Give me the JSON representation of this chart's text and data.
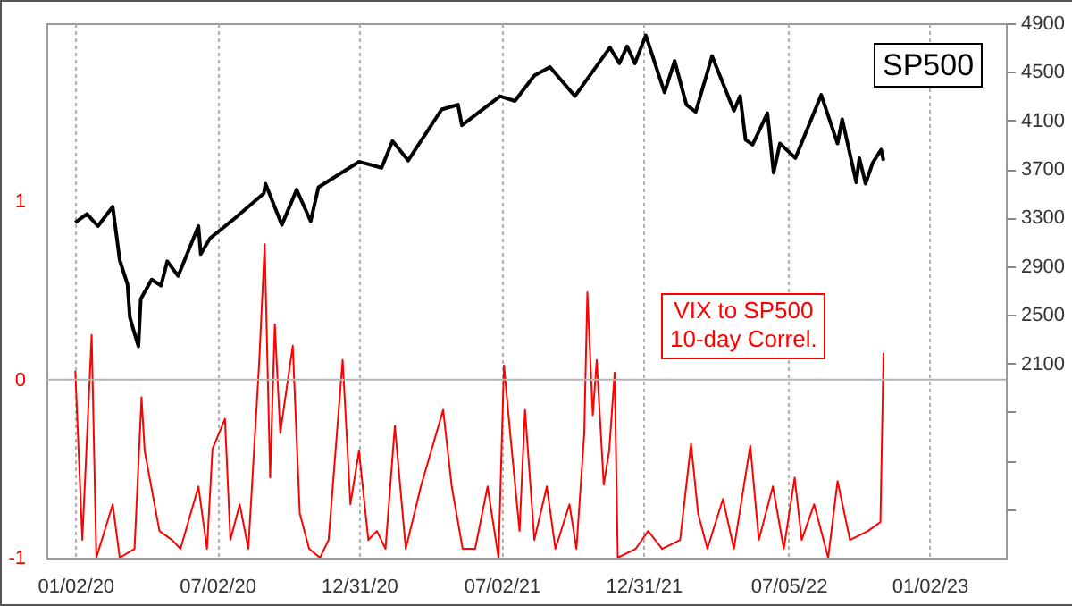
{
  "chart_data": {
    "type": "line",
    "grid": "x",
    "xlim": [
      "2019-11-26",
      "2023-04-10"
    ],
    "xticks": [
      {
        "value": "2020-01-02",
        "label": "01/02/20"
      },
      {
        "value": "2020-07-02",
        "label": "07/02/20"
      },
      {
        "value": "2020-12-31",
        "label": "12/31/20"
      },
      {
        "value": "2021-07-02",
        "label": "07/02/21"
      },
      {
        "value": "2021-12-31",
        "label": "12/31/21"
      },
      {
        "value": "2022-07-05",
        "label": "07/05/22"
      },
      {
        "value": "2023-01-02",
        "label": "01/02/23"
      }
    ],
    "ylim": [
      -1,
      2
    ],
    "yticks": [
      -1,
      0,
      1
    ],
    "y2lim": [
      500,
      4900
    ],
    "y2ticks": [
      {
        "value": 900,
        "label": null
      },
      {
        "value": 1300,
        "label": null
      },
      {
        "value": 1700,
        "label": null
      },
      2100,
      2500,
      2900,
      3300,
      3700,
      4100,
      4500,
      4900
    ],
    "ref_lines": [
      {
        "axis": "y",
        "value": 0,
        "color": "#b4b4b4"
      }
    ],
    "series": [
      {
        "name": "VIX to SP500\n10-day Correl.",
        "color": "#ff0000",
        "x": [
          "2020-01-02",
          "2020-01-11",
          "2020-01-23",
          "2020-01-29",
          "2020-02-19",
          "2020-02-28",
          "2020-03-18",
          "2020-03-27",
          "2020-03-31",
          "2020-04-19",
          "2020-05-05",
          "2020-05-16",
          "2020-06-08",
          "2020-06-19",
          "2020-06-26",
          "2020-07-12",
          "2020-07-19",
          "2020-07-31",
          "2020-08-11",
          "2020-08-25",
          "2020-09-01",
          "2020-09-08",
          "2020-09-14",
          "2020-09-21",
          "2020-10-07",
          "2020-10-16",
          "2020-10-28",
          "2020-11-11",
          "2020-11-22",
          "2020-12-10",
          "2020-12-20",
          "2020-12-31",
          "2021-01-12",
          "2021-01-23",
          "2021-02-03",
          "2021-02-15",
          "2021-03-01",
          "2021-03-21",
          "2021-04-18",
          "2021-04-29",
          "2021-05-13",
          "2021-05-29",
          "2021-06-14",
          "2021-06-28",
          "2021-07-05",
          "2021-07-14",
          "2021-07-25",
          "2021-08-01",
          "2021-08-13",
          "2021-08-29",
          "2021-09-09",
          "2021-09-27",
          "2021-10-06",
          "2021-10-16",
          "2021-10-20",
          "2021-10-27",
          "2021-11-01",
          "2021-11-10",
          "2021-11-17",
          "2021-11-24",
          "2021-11-28",
          "2021-12-21",
          "2022-01-06",
          "2022-01-24",
          "2022-02-16",
          "2022-03-02",
          "2022-03-11",
          "2022-03-23",
          "2022-04-12",
          "2022-04-26",
          "2022-05-17",
          "2022-05-28",
          "2022-06-15",
          "2022-06-29",
          "2022-07-13",
          "2022-07-22",
          "2022-08-07",
          "2022-08-25",
          "2022-09-06",
          "2022-09-22",
          "2022-10-15",
          "2022-10-31",
          "2022-11-04"
        ],
        "values": [
          0.05,
          -0.9,
          0.25,
          -1,
          -0.7,
          -1,
          -0.95,
          -0.1,
          -0.4,
          -0.85,
          -0.9,
          -0.95,
          -0.6,
          -0.95,
          -0.39,
          -0.22,
          -0.9,
          -0.7,
          -0.95,
          0.1,
          0.76,
          -0.55,
          0.31,
          -0.3,
          0.19,
          -0.75,
          -0.95,
          -1,
          -0.9,
          0.11,
          -0.7,
          -0.4,
          -0.9,
          -0.85,
          -0.95,
          -0.26,
          -0.95,
          -0.59,
          -0.17,
          -0.6,
          -0.95,
          -0.95,
          -0.6,
          -1,
          0.08,
          -0.35,
          -0.85,
          -0.17,
          -0.9,
          -0.6,
          -0.95,
          -0.7,
          -0.95,
          -0.3,
          0.49,
          -0.2,
          0.11,
          -0.59,
          -0.4,
          0.04,
          -1,
          -0.95,
          -0.85,
          -0.95,
          -0.9,
          -0.36,
          -0.75,
          -0.95,
          -0.67,
          -0.95,
          -0.37,
          -0.9,
          -0.6,
          -0.95,
          -0.55,
          -0.9,
          -0.7,
          -1,
          -0.57,
          -0.9,
          -0.85,
          -0.8,
          0.15
        ]
      },
      {
        "name": "SP500",
        "color": "#000000",
        "axis": "y2",
        "x": [
          "2020-01-02",
          "2020-01-17",
          "2020-01-31",
          "2020-02-19",
          "2020-02-28",
          "2020-03-09",
          "2020-03-12",
          "2020-03-16",
          "2020-03-23",
          "2020-03-26",
          "2020-04-09",
          "2020-04-21",
          "2020-04-29",
          "2020-05-13",
          "2020-06-08",
          "2020-06-11",
          "2020-06-23",
          "2020-07-22",
          "2020-08-31",
          "2020-09-02",
          "2020-09-23",
          "2020-10-12",
          "2020-10-30",
          "2020-11-09",
          "2020-12-31",
          "2021-01-29",
          "2021-02-12",
          "2021-03-04",
          "2021-04-16",
          "2021-05-07",
          "2021-05-12",
          "2021-06-30",
          "2021-07-19",
          "2021-08-13",
          "2021-09-02",
          "2021-10-04",
          "2021-11-18",
          "2021-11-30",
          "2021-12-10",
          "2021-12-20",
          "2022-01-03",
          "2022-01-27",
          "2022-02-09",
          "2022-02-24",
          "2022-03-08",
          "2022-03-29",
          "2022-04-26",
          "2022-05-04",
          "2022-05-11",
          "2022-05-20",
          "2022-06-08",
          "2022-06-16",
          "2022-06-24",
          "2022-07-14",
          "2022-08-16",
          "2022-09-06",
          "2022-09-12",
          "2022-09-30",
          "2022-10-04",
          "2022-10-12",
          "2022-10-21",
          "2022-10-27",
          "2022-11-01",
          "2022-11-04"
        ],
        "values": [
          3260,
          3330,
          3230,
          3390,
          2950,
          2750,
          2480,
          2390,
          2240,
          2630,
          2790,
          2740,
          2940,
          2820,
          3230,
          3000,
          3130,
          3280,
          3500,
          3580,
          3240,
          3530,
          3270,
          3550,
          3760,
          3710,
          3930,
          3770,
          4190,
          4230,
          4060,
          4300,
          4260,
          4470,
          4540,
          4300,
          4700,
          4570,
          4710,
          4570,
          4800,
          4330,
          4590,
          4230,
          4170,
          4630,
          4180,
          4300,
          3940,
          3900,
          4160,
          3670,
          3910,
          3790,
          4310,
          3910,
          4110,
          3590,
          3790,
          3580,
          3750,
          3810,
          3860,
          3770
        ]
      }
    ]
  }
}
